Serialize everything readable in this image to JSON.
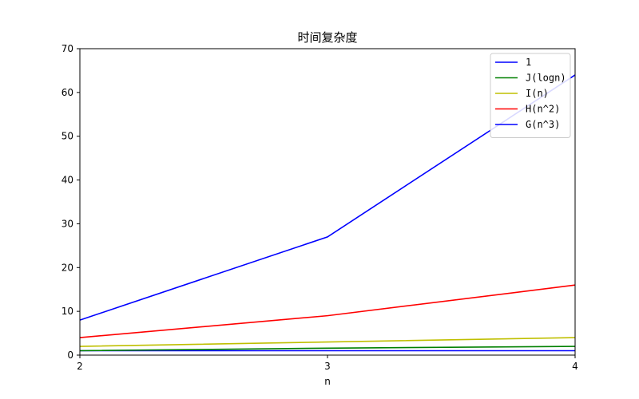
{
  "chart_data": {
    "type": "line",
    "title": "时间复杂度",
    "xlabel": "n",
    "ylabel": "",
    "xlim": [
      2,
      4
    ],
    "ylim": [
      0,
      70
    ],
    "x_ticks": [
      2,
      3,
      4
    ],
    "y_ticks": [
      0,
      10,
      20,
      30,
      40,
      50,
      60,
      70
    ],
    "grid": false,
    "legend_position": "top-right",
    "x": [
      2,
      3,
      4
    ],
    "series": [
      {
        "name": "1",
        "color": "#0000ff",
        "values": [
          1,
          1,
          1
        ]
      },
      {
        "name": "J(logn)",
        "color": "#008000",
        "values": [
          1,
          1.585,
          2
        ]
      },
      {
        "name": "I(n)",
        "color": "#bfbf00",
        "values": [
          2,
          3,
          4
        ]
      },
      {
        "name": "H(n^2)",
        "color": "#ff0000",
        "values": [
          4,
          9,
          16
        ]
      },
      {
        "name": "G(n^3)",
        "color": "#0000ff",
        "values": [
          8,
          27,
          64
        ]
      }
    ]
  }
}
